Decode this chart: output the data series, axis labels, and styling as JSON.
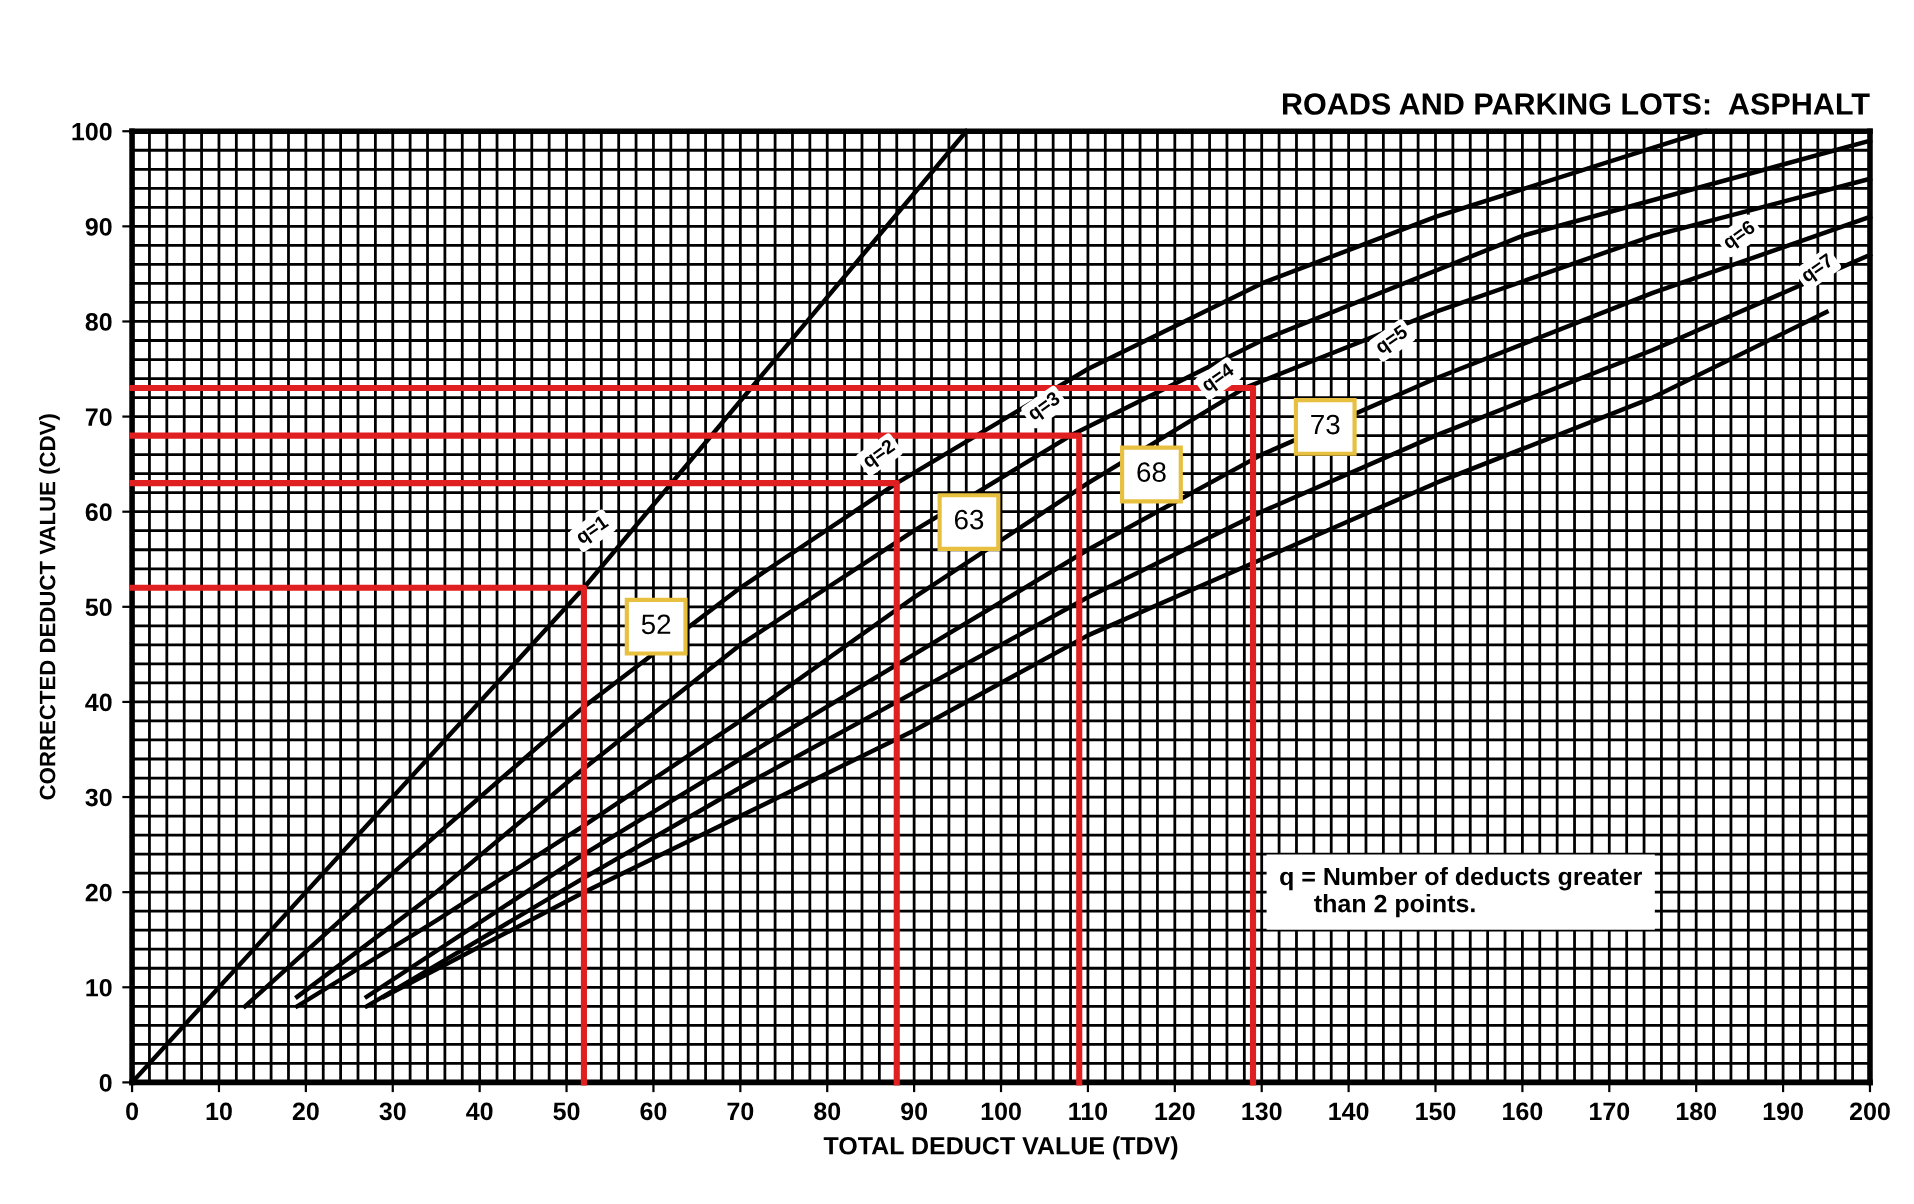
{
  "chart_data": {
    "type": "line",
    "title": "ROADS AND PARKING LOTS:  ASPHALT",
    "xlabel": "TOTAL DEDUCT VALUE (TDV)",
    "ylabel": "CORRECTED DEDUCT VALUE (CDV)",
    "xlim": [
      0,
      200
    ],
    "ylim": [
      0,
      100
    ],
    "xticks": [
      0,
      10,
      20,
      30,
      40,
      50,
      60,
      70,
      80,
      90,
      100,
      110,
      120,
      130,
      140,
      150,
      160,
      170,
      180,
      190,
      200
    ],
    "yticks": [
      0,
      10,
      20,
      30,
      40,
      50,
      60,
      70,
      80,
      90,
      100
    ],
    "grid": true,
    "marker": "none",
    "line_style": "solid",
    "series": [
      {
        "color": "#000000",
        "x": [
          0,
          52,
          96
        ],
        "values": [
          0,
          52,
          100
        ]
      },
      {
        "color": "#000000",
        "x": [
          13,
          30,
          52,
          70,
          88,
          110,
          130,
          150,
          181
        ],
        "values": [
          8,
          22,
          39.5,
          52,
          63,
          75,
          84,
          91,
          100
        ]
      },
      {
        "color": "#000000",
        "x": [
          19,
          35,
          52,
          70,
          90,
          108,
          130,
          160,
          200
        ],
        "values": [
          9,
          20,
          33,
          46,
          58,
          68,
          78,
          89,
          99
        ]
      },
      {
        "color": "#000000",
        "x": [
          19,
          35,
          52,
          70,
          90,
          110,
          128,
          150,
          175,
          200
        ],
        "values": [
          8,
          17,
          27,
          38,
          51,
          63,
          73,
          81,
          89,
          95
        ]
      },
      {
        "color": "#000000",
        "x": [
          27,
          52,
          70,
          90,
          110,
          130,
          150,
          175,
          200
        ],
        "values": [
          9,
          24,
          34,
          45,
          56,
          66,
          74,
          83,
          91
        ]
      },
      {
        "color": "#000000",
        "x": [
          27,
          52,
          70,
          90,
          110,
          130,
          150,
          175,
          200
        ],
        "values": [
          8,
          21.5,
          31,
          41,
          51,
          60,
          68,
          77,
          87
        ]
      },
      {
        "color": "#000000",
        "x": [
          29,
          52,
          70,
          90,
          110,
          130,
          150,
          175,
          195
        ],
        "values": [
          9,
          20,
          28,
          37,
          47,
          55,
          63,
          72,
          81
        ]
      },
      {
        "color": "#e02020",
        "x": [
          0,
          52,
          52
        ],
        "values": [
          52,
          52,
          0
        ]
      },
      {
        "color": "#e02020",
        "x": [
          0,
          88,
          88
        ],
        "values": [
          63,
          63,
          0
        ]
      },
      {
        "color": "#e02020",
        "x": [
          0,
          109,
          109
        ],
        "values": [
          68,
          68,
          0
        ]
      },
      {
        "color": "#e02020",
        "x": [
          0,
          129,
          129
        ],
        "values": [
          73,
          73,
          0
        ]
      }
    ],
    "annotations": [
      {
        "text": "q=1",
        "x": 53,
        "y": 58
      },
      {
        "text": "q=2",
        "x": 86,
        "y": 66
      },
      {
        "text": "q=3",
        "x": 105,
        "y": 71
      },
      {
        "text": "q=4",
        "x": 125,
        "y": 74
      },
      {
        "text": "q=5",
        "x": 145,
        "y": 78
      },
      {
        "text": "q=6",
        "x": 185,
        "y": 89
      },
      {
        "text": "q=7",
        "x": 194,
        "y": 85.5
      },
      {
        "text": "52",
        "x": 52,
        "y": 52
      },
      {
        "text": "63",
        "x": 88,
        "y": 63
      },
      {
        "text": "68",
        "x": 109,
        "y": 68
      },
      {
        "text": "73",
        "x": 129,
        "y": 73
      },
      "q = Number of deducts greater\n     than 2 points."
    ]
  }
}
